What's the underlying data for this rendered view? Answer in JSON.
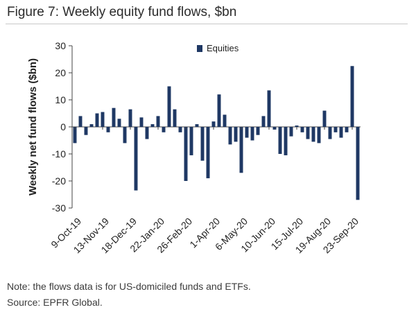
{
  "figure": {
    "title": "Figure 7: Weekly equity fund flows, $bn",
    "note": "Note: the flows data is for US-domiciled funds and ETFs.",
    "source": "Source: EPFR Global."
  },
  "colors": {
    "bar": "#1f3864",
    "axis": "#444444"
  },
  "chart_data": {
    "type": "bar",
    "ylabel": "Weekly net fund flows ($bn)",
    "ylim": [
      -30,
      30
    ],
    "yticks": [
      -30,
      -20,
      -10,
      0,
      10,
      20,
      30
    ],
    "legend": {
      "position": "top-center",
      "entries": [
        "Equities"
      ]
    },
    "grid": false,
    "xtick_labels": [
      "9-Oct-19",
      "13-Nov-19",
      "18-Dec-19",
      "22-Jan-20",
      "26-Feb-20",
      "1-Apr-20",
      "6-May-20",
      "10-Jun-20",
      "15-Jul-20",
      "19-Aug-20",
      "23-Sep-20"
    ],
    "series": [
      {
        "name": "Equities",
        "values": [
          -6,
          4,
          -3,
          1,
          5,
          5.5,
          -2,
          7,
          3,
          -6,
          6.5,
          -23.5,
          3.5,
          -4.5,
          1,
          4,
          -2,
          15,
          6.5,
          -2,
          -20,
          -10.5,
          1,
          -12.5,
          -19,
          2,
          12,
          4.5,
          -6.5,
          -5.5,
          -17,
          -4,
          -5,
          -3,
          4,
          13.5,
          -1,
          -10,
          -10.5,
          -3.5,
          0.5,
          -2,
          -4.5,
          -5.5,
          -6,
          6,
          -4.5,
          -2,
          -4,
          -2,
          22.5,
          -27
        ]
      }
    ]
  }
}
